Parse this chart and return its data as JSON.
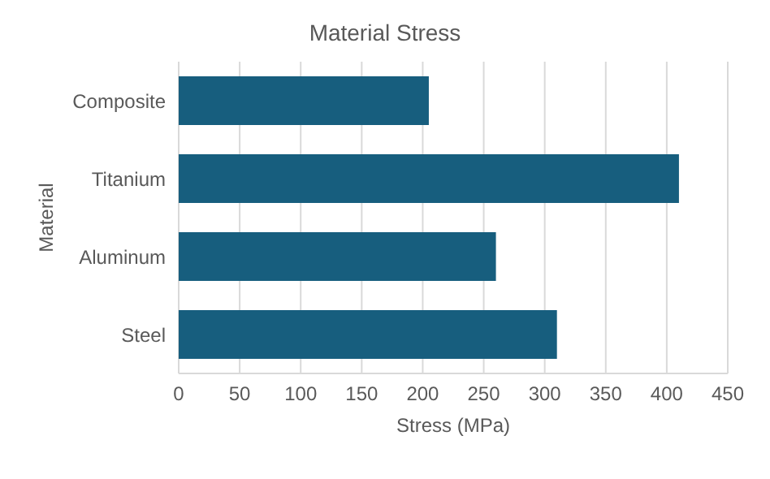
{
  "chart_data": {
    "type": "bar",
    "orientation": "horizontal",
    "title": "Material Stress",
    "xlabel": "Stress (MPa)",
    "ylabel": "Material",
    "categories": [
      "Composite",
      "Titanium",
      "Aluminum",
      "Steel"
    ],
    "values": [
      205,
      410,
      260,
      310
    ],
    "color": "#175e7e",
    "xlim": [
      0,
      450
    ],
    "xticks": [
      0,
      50,
      100,
      150,
      200,
      250,
      300,
      350,
      400,
      450
    ],
    "grid": "x"
  }
}
